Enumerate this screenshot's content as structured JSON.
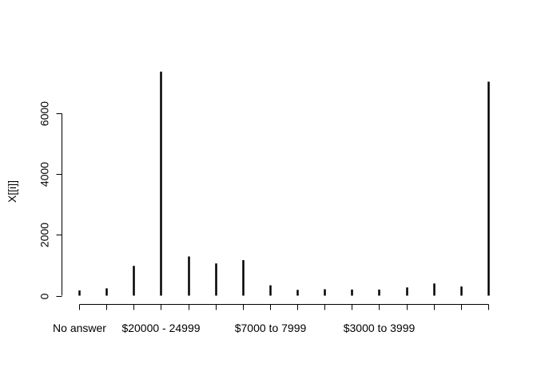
{
  "chart_data": {
    "type": "bar",
    "ylabel": "X[[i]]",
    "ylim": [
      0,
      7400
    ],
    "yticks": [
      0,
      2000,
      4000,
      6000
    ],
    "categories": [
      "No answer",
      "",
      "",
      "$20000 - 24999",
      "",
      "",
      "",
      "$7000 to 7999",
      "",
      "",
      "",
      "$3000 to 3999",
      "",
      "",
      "",
      ""
    ],
    "values": [
      170,
      240,
      980,
      7380,
      1290,
      1060,
      1170,
      340,
      190,
      210,
      200,
      200,
      270,
      400,
      300,
      7050
    ]
  }
}
